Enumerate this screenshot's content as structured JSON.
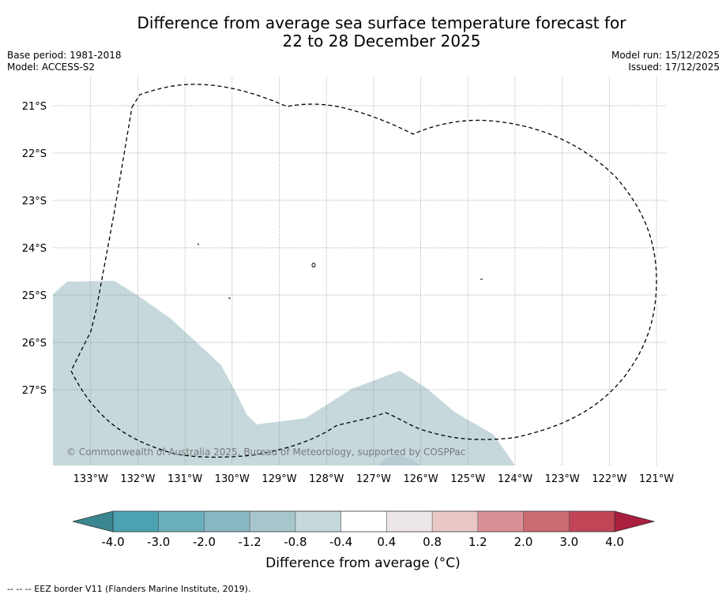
{
  "title": {
    "line1": "Difference from average sea surface temperature forecast for",
    "line2": "22 to 28 December 2025"
  },
  "meta_left": {
    "base_period": "Base period: 1981-2018",
    "model": "Model: ACCESS-S2"
  },
  "meta_right": {
    "model_run": "Model run: 15/12/2025",
    "issued": "Issued: 17/12/2025"
  },
  "map": {
    "lon_labels": [
      "133°W",
      "132°W",
      "131°W",
      "130°W",
      "129°W",
      "128°W",
      "127°W",
      "126°W",
      "125°W",
      "124°W",
      "123°W",
      "122°W",
      "121°W"
    ],
    "lon_values": [
      -133,
      -132,
      -131,
      -130,
      -129,
      -128,
      -127,
      -126,
      -125,
      -124,
      -123,
      -122,
      -121
    ],
    "lat_labels": [
      "21°S",
      "22°S",
      "23°S",
      "24°S",
      "25°S",
      "26°S",
      "27°S"
    ],
    "lat_values": [
      -21,
      -22,
      -23,
      -24,
      -25,
      -26,
      -27
    ],
    "lon_range": [
      -133.8,
      -120.8
    ],
    "lat_range": [
      -28.6,
      -20.4
    ],
    "copyright": "© Commonwealth of Australia 2025, Bureau of Meteorology, supported by COSPPac",
    "anomaly_region_class": "-0.8 to -0.4"
  },
  "colorbar": {
    "title": "Difference from average (°C)",
    "ticks": [
      "-4.0",
      "-3.0",
      "-2.0",
      "-1.2",
      "-0.8",
      "-0.4",
      "0.4",
      "0.8",
      "1.2",
      "2.0",
      "3.0",
      "4.0"
    ],
    "colors": [
      "#4aa2b3",
      "#6aaebb",
      "#88b7c2",
      "#a7c6cb",
      "#c5d8dc",
      "#ffffff",
      "#ede6e6",
      "#e9c7c4",
      "#d98f94",
      "#cc6a72",
      "#c04555"
    ],
    "under_color": "#3b8791",
    "over_color": "#aa1f3e"
  },
  "colors": {
    "anomaly_fill": "#c6d8dc",
    "eez_line": "#000000",
    "grid": "#888888"
  },
  "footnote": "--  --  -- EEZ border V11 (Flanders Marine Institute, 2019)."
}
